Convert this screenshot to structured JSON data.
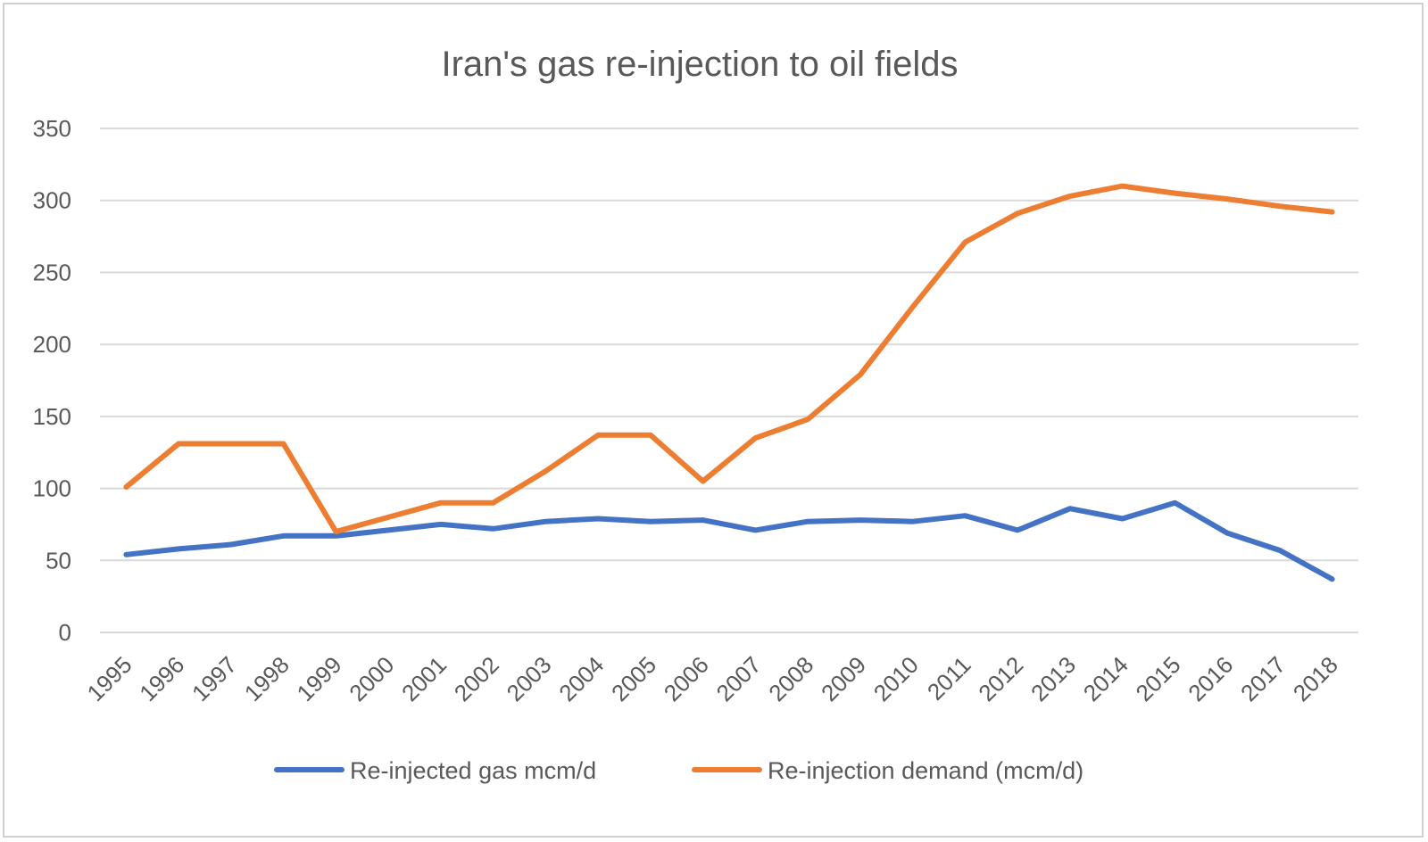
{
  "chart_data": {
    "type": "line",
    "title": "Iran's gas re-injection to oil fields",
    "xlabel": "",
    "ylabel": "",
    "ylim": [
      0,
      350
    ],
    "yticks": [
      0,
      50,
      100,
      150,
      200,
      250,
      300,
      350
    ],
    "grid": true,
    "legend_position": "bottom",
    "categories": [
      "1995",
      "1996",
      "1997",
      "1998",
      "1999",
      "2000",
      "2001",
      "2002",
      "2003",
      "2004",
      "2005",
      "2006",
      "2007",
      "2008",
      "2009",
      "2010",
      "2011",
      "2012",
      "2013",
      "2014",
      "2015",
      "2016",
      "2017",
      "2018"
    ],
    "series": [
      {
        "name": "Re-injected gas mcm/d",
        "color": "#4472c4",
        "values": [
          54,
          58,
          61,
          67,
          67,
          71,
          75,
          72,
          77,
          79,
          77,
          78,
          71,
          77,
          78,
          77,
          81,
          71,
          86,
          79,
          90,
          69,
          57,
          37
        ]
      },
      {
        "name": "Re-injection demand (mcm/d)",
        "color": "#ed7d31",
        "values": [
          101,
          131,
          131,
          131,
          70,
          80,
          90,
          90,
          112,
          137,
          137,
          105,
          135,
          148,
          179,
          226,
          271,
          291,
          303,
          310,
          305,
          301,
          296,
          292
        ]
      }
    ]
  }
}
